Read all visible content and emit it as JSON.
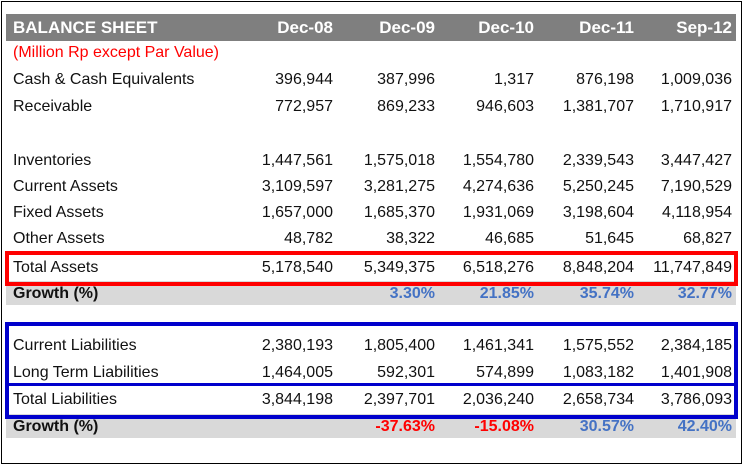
{
  "table": {
    "title": "BALANCE SHEET",
    "columns": [
      "Dec-08",
      "Dec-09",
      "Dec-10",
      "Dec-11",
      "Sep-12"
    ],
    "subtitle": "(Million Rp except Par Value)",
    "assets": {
      "cash": {
        "label": "Cash & Cash Equivalents",
        "values": [
          "396,944",
          "387,996",
          "1,317",
          "876,198",
          "1,009,036"
        ]
      },
      "receivable": {
        "label": "Receivable",
        "values": [
          "772,957",
          "869,233",
          "946,603",
          "1,381,707",
          "1,710,917"
        ]
      },
      "inventories": {
        "label": "Inventories",
        "values": [
          "1,447,561",
          "1,575,018",
          "1,554,780",
          "2,339,543",
          "3,447,427"
        ]
      },
      "current_assets": {
        "label": "Current Assets",
        "values": [
          "3,109,597",
          "3,281,275",
          "4,274,636",
          "5,250,245",
          "7,190,529"
        ]
      },
      "fixed_assets": {
        "label": "Fixed Assets",
        "values": [
          "1,657,000",
          "1,685,370",
          "1,931,069",
          "3,198,604",
          "4,118,954"
        ]
      },
      "other_assets": {
        "label": "Other Assets",
        "values": [
          "48,782",
          "38,322",
          "46,685",
          "51,645",
          "68,827"
        ]
      },
      "total_assets": {
        "label": "Total Assets",
        "values": [
          "5,178,540",
          "5,349,375",
          "6,518,276",
          "8,848,204",
          "11,747,849"
        ]
      },
      "growth": {
        "label": "Growth (%)",
        "values": [
          "",
          "3.30%",
          "21.85%",
          "35.74%",
          "32.77%"
        ]
      }
    },
    "liabilities": {
      "current": {
        "label": "Current Liabilities",
        "values": [
          "2,380,193",
          "1,805,400",
          "1,461,341",
          "1,575,552",
          "2,384,185"
        ]
      },
      "long_term": {
        "label": "Long Term Liabilities",
        "values": [
          "1,464,005",
          "592,301",
          "574,899",
          "1,083,182",
          "1,401,908"
        ]
      },
      "total": {
        "label": "Total Liabilities",
        "values": [
          "3,844,198",
          "2,397,701",
          "2,036,240",
          "2,658,734",
          "3,786,093"
        ]
      },
      "growth": {
        "label": "Growth (%)",
        "values": [
          "",
          "-37.63%",
          "-15.08%",
          "30.57%",
          "42.40%"
        ]
      }
    }
  },
  "colors": {
    "header_bg": "#7f7f7f",
    "subtitle": "#ff0000",
    "growth_bg": "#d9d9d9",
    "growth_positive": "#4472c4",
    "growth_negative": "#ff0000",
    "assets_highlight": "#ff0000",
    "liabilities_highlight": "#0000cc"
  }
}
